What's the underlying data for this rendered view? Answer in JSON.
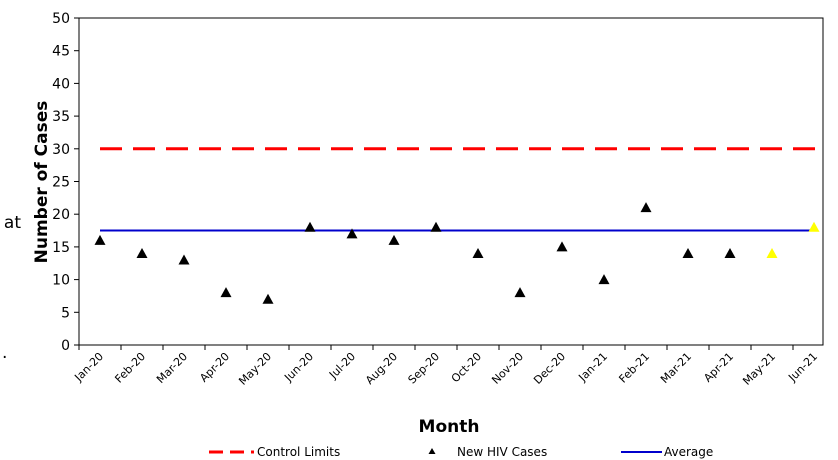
{
  "chart_data": {
    "type": "scatter",
    "title": "",
    "xlabel": "Month",
    "ylabel": "Number of Cases",
    "ylim": [
      0,
      50
    ],
    "yticks": [
      0,
      5,
      10,
      15,
      20,
      25,
      30,
      35,
      40,
      45,
      50
    ],
    "categories": [
      "Jan-20",
      "Feb-20",
      "Mar-20",
      "Apr-20",
      "May-20",
      "Jun-20",
      "Jul-20",
      "Aug-20",
      "Sep-20",
      "Oct-20",
      "Nov-20",
      "Dec-20",
      "Jan-21",
      "Feb-21",
      "Mar-21",
      "Apr-21",
      "May-21",
      "Jun-21"
    ],
    "series": [
      {
        "name": "New HIV Cases",
        "values": [
          16,
          14,
          13,
          8,
          7,
          18,
          17,
          16,
          18,
          14,
          8,
          15,
          10,
          21,
          14,
          14,
          14,
          18
        ],
        "highlight_indices": [
          16,
          17
        ],
        "color": "#000000",
        "highlight_color": "#ffff00"
      },
      {
        "name": "Control Limits",
        "value": 30,
        "color": "#ff0000"
      },
      {
        "name": "Average",
        "value": 17.5,
        "color": "#0000cc"
      }
    ],
    "grid": false,
    "legend_position": "bottom"
  },
  "edge_text": {
    "left_fragment": "at",
    "bottom_fragment": "."
  }
}
